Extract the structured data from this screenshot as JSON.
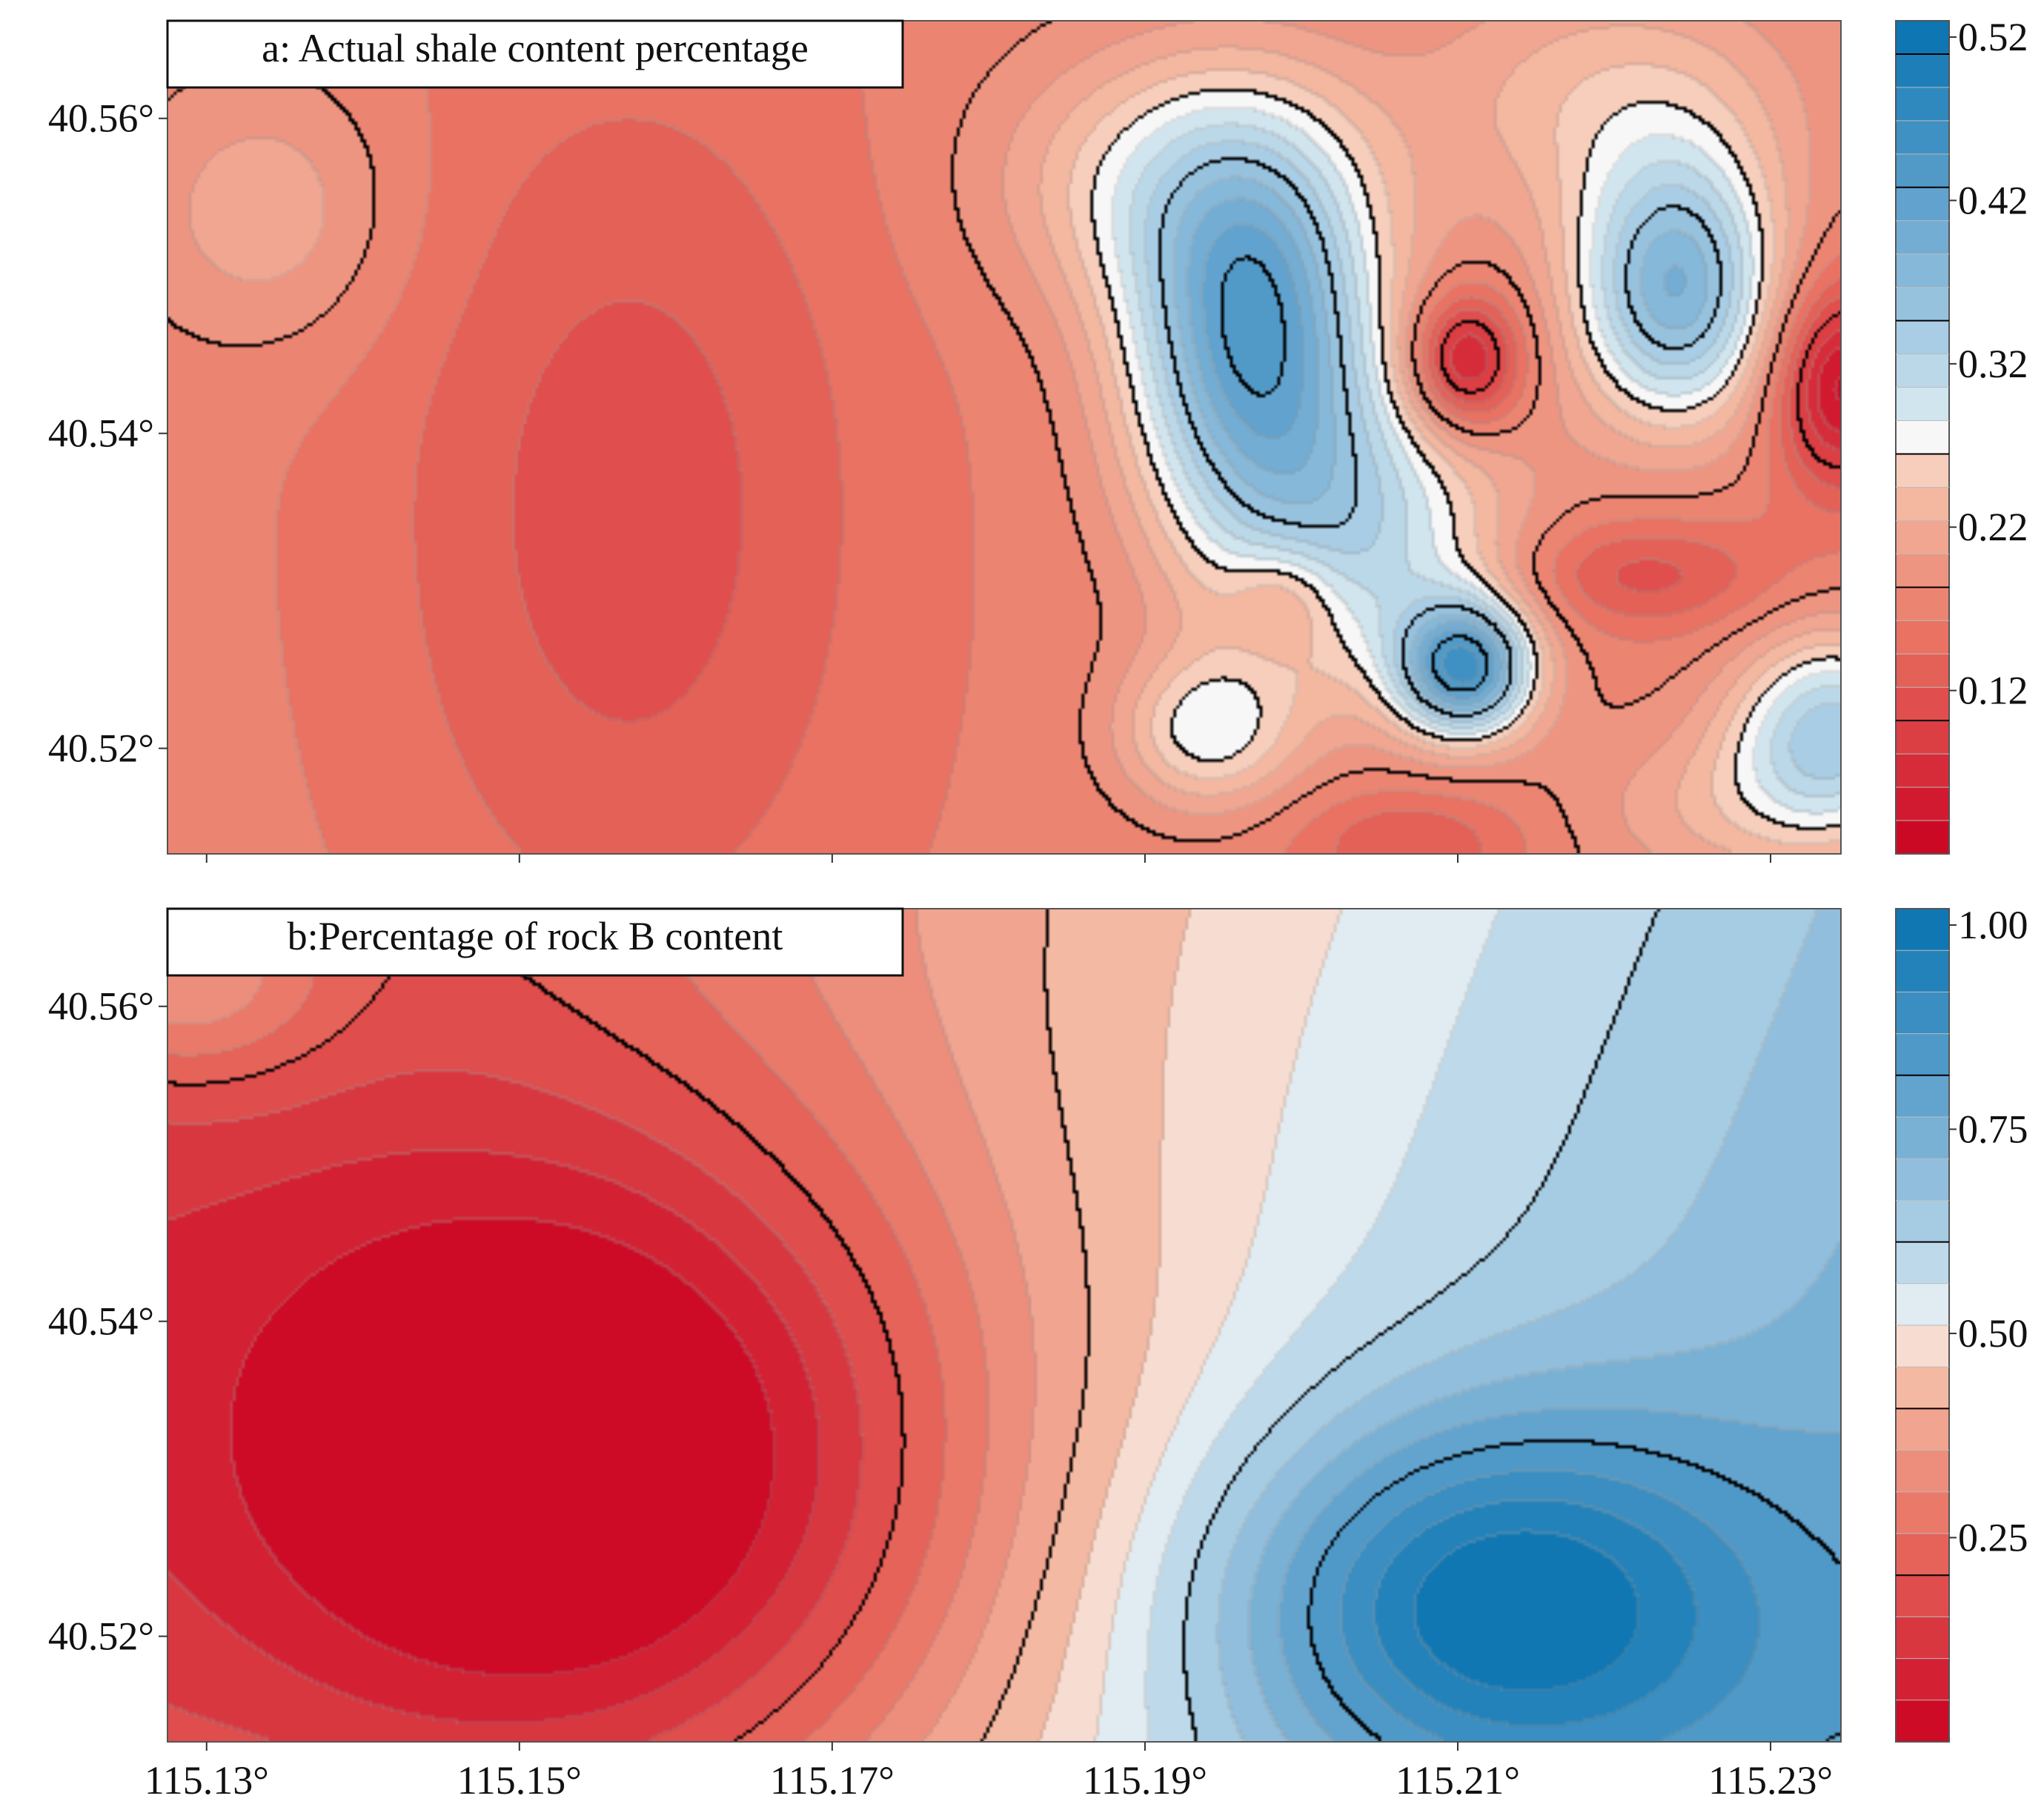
{
  "chart_data": [
    {
      "type": "heatmap",
      "subtype": "filled-contour",
      "title": "a: Actual shale content percentage",
      "xlabel": "",
      "ylabel": "",
      "xlim": [
        115.1275,
        115.2345
      ],
      "ylim": [
        40.5133,
        40.5662
      ],
      "x_ticks": [
        115.13,
        115.15,
        115.17,
        115.19,
        115.21,
        115.23
      ],
      "y_ticks": [
        40.52,
        40.54,
        40.56
      ],
      "y_tick_labels": [
        "40.52°",
        "40.54°",
        "40.56°"
      ],
      "colorbar": {
        "range": [
          0.02,
          0.53
        ],
        "ticks": [
          0.12,
          0.22,
          0.32,
          0.42,
          0.52
        ],
        "tick_labels": [
          "0.12",
          "0.22",
          "0.32",
          "0.42",
          "0.52"
        ],
        "levels": 25
      },
      "field": {
        "base": 0.17,
        "components": [
          {
            "kind": "gaussian",
            "x": 115.157,
            "y": 40.535,
            "amp": -0.06,
            "sx": 0.011,
            "sy": 0.02
          },
          {
            "kind": "gaussian",
            "x": 115.134,
            "y": 40.554,
            "amp": 0.05,
            "sx": 0.006,
            "sy": 0.006
          },
          {
            "kind": "gaussian",
            "x": 115.197,
            "y": 40.546,
            "amp": 0.24,
            "sx": 0.0055,
            "sy": 0.0085
          },
          {
            "kind": "gaussian",
            "x": 115.2105,
            "y": 40.525,
            "amp": 0.25,
            "sx": 0.003,
            "sy": 0.003
          },
          {
            "kind": "gaussian",
            "x": 115.224,
            "y": 40.549,
            "amp": 0.21,
            "sx": 0.0045,
            "sy": 0.006
          },
          {
            "kind": "gaussian",
            "x": 115.234,
            "y": 40.521,
            "amp": 0.16,
            "sx": 0.0045,
            "sy": 0.0045
          },
          {
            "kind": "gaussian",
            "x": 115.194,
            "y": 40.521,
            "amp": 0.1,
            "sx": 0.004,
            "sy": 0.0035
          },
          {
            "kind": "gaussian",
            "x": 115.204,
            "y": 40.533,
            "amp": 0.13,
            "sx": 0.007,
            "sy": 0.007
          },
          {
            "kind": "gaussian",
            "x": 115.199,
            "y": 40.5295,
            "amp": -0.06,
            "sx": 0.0025,
            "sy": 0.0025
          },
          {
            "kind": "gaussian",
            "x": 115.2105,
            "y": 40.5445,
            "amp": -0.14,
            "sx": 0.0025,
            "sy": 0.003
          },
          {
            "kind": "gaussian",
            "x": 115.2345,
            "y": 40.543,
            "amp": -0.14,
            "sx": 0.003,
            "sy": 0.0045
          },
          {
            "kind": "gaussian",
            "x": 115.2215,
            "y": 40.531,
            "amp": -0.06,
            "sx": 0.006,
            "sy": 0.0025
          },
          {
            "kind": "gaussian",
            "x": 115.207,
            "y": 40.514,
            "amp": -0.05,
            "sx": 0.005,
            "sy": 0.0025
          },
          {
            "kind": "gaussian",
            "x": 115.192,
            "y": 40.556,
            "amp": 0.09,
            "sx": 0.008,
            "sy": 0.006
          },
          {
            "kind": "gaussian",
            "x": 115.22,
            "y": 40.561,
            "amp": 0.07,
            "sx": 0.009,
            "sy": 0.006
          },
          {
            "kind": "gaussian",
            "x": 115.227,
            "y": 40.516,
            "amp": 0.05,
            "sx": 0.007,
            "sy": 0.004
          }
        ]
      },
      "label_box": "a: Actual shale content percentage"
    },
    {
      "type": "heatmap",
      "subtype": "filled-contour",
      "title": "b:Percentage of rock B content",
      "xlabel": "",
      "ylabel": "",
      "xlim": [
        115.1275,
        115.2345
      ],
      "ylim": [
        40.5133,
        40.5662
      ],
      "x_ticks": [
        115.13,
        115.15,
        115.17,
        115.19,
        115.21,
        115.23
      ],
      "x_tick_labels": [
        "115.13°",
        "115.15°",
        "115.17°",
        "115.19°",
        "115.21°",
        "115.23°"
      ],
      "y_ticks": [
        40.52,
        40.54,
        40.56
      ],
      "y_tick_labels": [
        "40.52°",
        "40.54°",
        "40.56°"
      ],
      "colorbar": {
        "range": [
          0.0,
          1.02
        ],
        "ticks": [
          0.25,
          0.5,
          0.75,
          1.0
        ],
        "tick_labels": [
          "0.25",
          "0.50",
          "0.75",
          "1.00"
        ],
        "levels": 20
      },
      "field": {
        "base": 0.5,
        "components": [
          {
            "kind": "linear",
            "ax": 5.0,
            "ay": -2.0,
            "x0": 115.19,
            "y0": 40.54
          },
          {
            "kind": "gaussian",
            "x": 115.1555,
            "y": 40.53,
            "amp": -0.42,
            "sx": 0.018,
            "sy": 0.016
          },
          {
            "kind": "gaussian",
            "x": 115.212,
            "y": 40.522,
            "amp": 0.38,
            "sx": 0.012,
            "sy": 0.0085
          },
          {
            "kind": "gaussian",
            "x": 115.128,
            "y": 40.562,
            "amp": 0.22,
            "sx": 0.007,
            "sy": 0.005
          }
        ]
      },
      "label_box": "b:Percentage of rock B content"
    }
  ],
  "colors": {
    "red_end": "#ca0020",
    "mid": "#f7f7f7",
    "blue_end": "#0571b0",
    "frame": "#555555",
    "contour_major": "#000000",
    "contour_minor": "#9a9a9a"
  }
}
